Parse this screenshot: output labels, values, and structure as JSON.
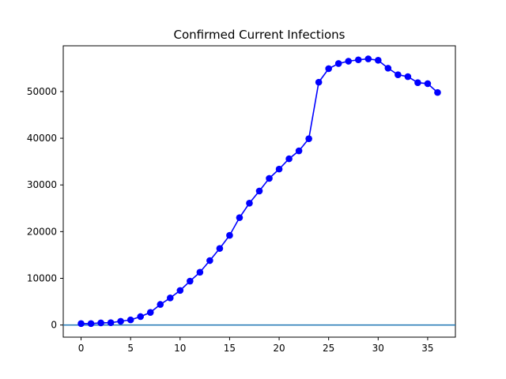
{
  "chart_data": {
    "type": "line",
    "title": "Confirmed Current Infections",
    "xlabel": "",
    "ylabel": "",
    "xlim": [
      -1.8,
      37.8
    ],
    "ylim": [
      -2600,
      59800
    ],
    "xticks": [
      0,
      5,
      10,
      15,
      20,
      25,
      30,
      35
    ],
    "yticks": [
      0,
      10000,
      20000,
      30000,
      40000,
      50000
    ],
    "grid": false,
    "legend": "none",
    "colors": {
      "series": "#0000ff",
      "baseline": "#1f77b4"
    },
    "baseline_y": 0,
    "series": [
      {
        "x": [
          0,
          1,
          2,
          3,
          4,
          5,
          6,
          7,
          8,
          9,
          10,
          11,
          12,
          13,
          14,
          15,
          16,
          17,
          18,
          19,
          20,
          21,
          22,
          23,
          24,
          25,
          26,
          27,
          28,
          29,
          30,
          31,
          32,
          33,
          34,
          35,
          36
        ],
        "values": [
          300,
          300,
          450,
          500,
          800,
          1100,
          1800,
          2700,
          4400,
          5800,
          7400,
          9400,
          11300,
          13800,
          16400,
          19200,
          23000,
          26100,
          28700,
          31400,
          33400,
          35600,
          37300,
          39900,
          52000,
          54900,
          56000,
          56500,
          56800,
          57000,
          56700,
          55000,
          53600,
          53200,
          51900,
          51700,
          49800
        ]
      }
    ]
  }
}
